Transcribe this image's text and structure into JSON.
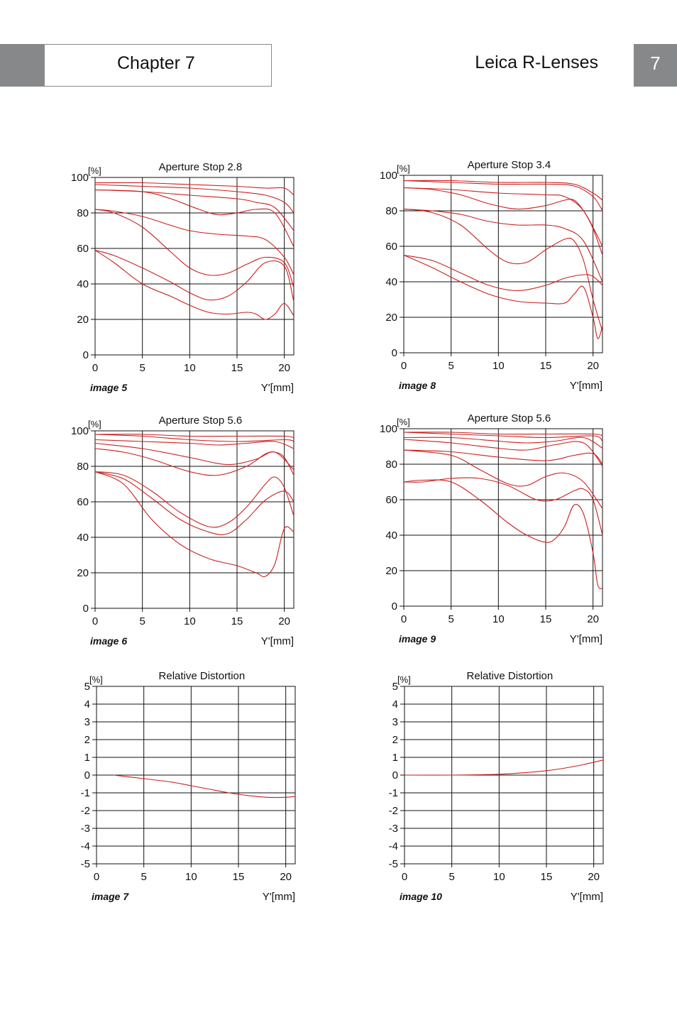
{
  "header": {
    "chapter": "Chapter 7",
    "section": "Leica R-Lenses",
    "page_number": "7"
  },
  "colors": {
    "curve": "#cc1f1f",
    "grid": "#111111",
    "header_block": "#868889"
  },
  "chart_data": [
    {
      "id": "image5",
      "type": "line",
      "title": "Aperture Stop 2.8",
      "caption": "image 5",
      "xlabel": "Y'[mm]",
      "ylabel": "[%]",
      "xlim": [
        0,
        21
      ],
      "ylim": [
        0,
        100
      ],
      "xticks": [
        0,
        5,
        10,
        15,
        20
      ],
      "yticks": [
        0,
        20,
        40,
        60,
        80,
        100
      ],
      "series": [
        {
          "x": [
            0,
            5,
            10,
            15,
            18,
            20,
            21
          ],
          "y": [
            97,
            97,
            96,
            95,
            94,
            94,
            90
          ]
        },
        {
          "x": [
            0,
            5,
            10,
            15,
            18,
            20,
            21
          ],
          "y": [
            96,
            95,
            94,
            92,
            90,
            86,
            80
          ]
        },
        {
          "x": [
            0,
            5,
            8,
            11,
            13,
            15,
            17,
            19,
            21
          ],
          "y": [
            93,
            92,
            88,
            82,
            79,
            80,
            82,
            80,
            61
          ]
        },
        {
          "x": [
            0,
            5,
            10,
            15,
            17,
            19,
            21
          ],
          "y": [
            93,
            92,
            90,
            88,
            86,
            83,
            70
          ]
        },
        {
          "x": [
            0,
            2,
            5,
            8,
            10,
            13,
            16,
            18,
            20,
            21
          ],
          "y": [
            82,
            81,
            78,
            73,
            70,
            68,
            67,
            65,
            55,
            45
          ]
        },
        {
          "x": [
            0,
            2,
            5,
            8,
            10,
            12,
            14,
            16,
            18,
            20,
            21
          ],
          "y": [
            82,
            80,
            72,
            58,
            49,
            45,
            46,
            51,
            55,
            52,
            38
          ]
        },
        {
          "x": [
            0,
            2,
            5,
            8,
            10,
            12,
            14,
            16,
            18,
            20,
            21
          ],
          "y": [
            59,
            56,
            49,
            41,
            35,
            31,
            33,
            41,
            52,
            50,
            30
          ]
        },
        {
          "x": [
            0,
            2,
            5,
            8,
            10,
            12,
            14,
            16,
            17,
            18,
            19,
            20,
            21
          ],
          "y": [
            59,
            52,
            40,
            33,
            28,
            24,
            23,
            24,
            23,
            20,
            23,
            29,
            22
          ]
        }
      ]
    },
    {
      "id": "image8",
      "type": "line",
      "title": "Aperture Stop 3.4",
      "caption": "image 8",
      "xlabel": "Y'[mm]",
      "ylabel": "[%]",
      "xlim": [
        0,
        21
      ],
      "ylim": [
        0,
        100
      ],
      "xticks": [
        0,
        5,
        10,
        15,
        20
      ],
      "yticks": [
        0,
        20,
        40,
        60,
        80,
        100
      ],
      "series": [
        {
          "x": [
            0,
            5,
            10,
            15,
            18,
            20,
            21
          ],
          "y": [
            97,
            97,
            96,
            96,
            95,
            90,
            86
          ]
        },
        {
          "x": [
            0,
            5,
            10,
            15,
            18,
            20,
            21
          ],
          "y": [
            97,
            96,
            95,
            95,
            94,
            88,
            80
          ]
        },
        {
          "x": [
            0,
            5,
            10,
            15,
            17,
            19,
            21
          ],
          "y": [
            93,
            92,
            90,
            89,
            88,
            80,
            60
          ]
        },
        {
          "x": [
            0,
            3,
            6,
            9,
            12,
            15,
            17,
            18,
            19,
            20,
            21
          ],
          "y": [
            93,
            92,
            89,
            84,
            81,
            83,
            86,
            86,
            80,
            70,
            55
          ]
        },
        {
          "x": [
            0,
            3,
            6,
            9,
            12,
            15,
            17,
            19,
            21
          ],
          "y": [
            81,
            80,
            78,
            74,
            72,
            72,
            70,
            63,
            40
          ]
        },
        {
          "x": [
            0,
            3,
            6,
            9,
            11,
            13,
            15,
            17,
            18,
            19,
            20,
            21
          ],
          "y": [
            81,
            79,
            72,
            58,
            51,
            51,
            58,
            64,
            63,
            52,
            30,
            12
          ]
        },
        {
          "x": [
            0,
            3,
            6,
            9,
            12,
            15,
            17,
            19,
            20,
            21
          ],
          "y": [
            55,
            52,
            45,
            38,
            35,
            38,
            42,
            44,
            43,
            38
          ]
        },
        {
          "x": [
            0,
            3,
            6,
            9,
            12,
            15,
            17,
            18,
            19,
            20,
            20.5,
            21
          ],
          "y": [
            55,
            48,
            40,
            33,
            29,
            28,
            28,
            33,
            37,
            20,
            8,
            15
          ]
        }
      ]
    },
    {
      "id": "image6",
      "type": "line",
      "title": "Aperture Stop 5.6",
      "caption": "image 6",
      "xlabel": "Y'[mm]",
      "ylabel": "[%]",
      "xlim": [
        0,
        21
      ],
      "ylim": [
        0,
        100
      ],
      "xticks": [
        0,
        5,
        10,
        15,
        20
      ],
      "yticks": [
        0,
        20,
        40,
        60,
        80,
        100
      ],
      "series": [
        {
          "x": [
            0,
            5,
            10,
            15,
            20,
            21
          ],
          "y": [
            98,
            98,
            97,
            97,
            97,
            96
          ]
        },
        {
          "x": [
            0,
            5,
            10,
            15,
            20,
            21
          ],
          "y": [
            98,
            97,
            95,
            94,
            95,
            94
          ]
        },
        {
          "x": [
            0,
            5,
            10,
            13,
            16,
            19,
            21
          ],
          "y": [
            95,
            94,
            93,
            92,
            93,
            94,
            90
          ]
        },
        {
          "x": [
            0,
            5,
            10,
            14,
            17,
            19,
            21
          ],
          "y": [
            93,
            90,
            85,
            81,
            84,
            88,
            78
          ]
        },
        {
          "x": [
            0,
            3,
            6,
            10,
            13,
            16,
            18,
            19,
            20,
            21
          ],
          "y": [
            90,
            88,
            84,
            77,
            75,
            80,
            87,
            88,
            85,
            75
          ]
        },
        {
          "x": [
            0,
            3,
            6,
            9,
            12,
            14,
            16,
            18,
            19,
            20,
            21
          ],
          "y": [
            77,
            75,
            66,
            54,
            46,
            48,
            57,
            70,
            74,
            68,
            52
          ]
        },
        {
          "x": [
            0,
            3,
            6,
            9,
            12,
            14,
            16,
            18,
            20,
            21
          ],
          "y": [
            77,
            73,
            62,
            50,
            43,
            42,
            50,
            61,
            66,
            60
          ]
        },
        {
          "x": [
            0,
            3,
            6,
            9,
            12,
            15,
            17,
            18,
            19,
            20,
            21
          ],
          "y": [
            77,
            70,
            50,
            36,
            28,
            24,
            20,
            18,
            25,
            45,
            43
          ]
        }
      ]
    },
    {
      "id": "image9",
      "type": "line",
      "title": "Aperture Stop 5.6",
      "caption": "image 9",
      "xlabel": "Y'[mm]",
      "ylabel": "[%]",
      "xlim": [
        0,
        21
      ],
      "ylim": [
        0,
        100
      ],
      "xticks": [
        0,
        5,
        10,
        15,
        20
      ],
      "yticks": [
        0,
        20,
        40,
        60,
        80,
        100
      ],
      "series": [
        {
          "x": [
            0,
            5,
            10,
            15,
            20,
            21
          ],
          "y": [
            98,
            98,
            97,
            97,
            97,
            96
          ]
        },
        {
          "x": [
            0,
            5,
            10,
            15,
            20,
            21
          ],
          "y": [
            98,
            97,
            96,
            95,
            96,
            93
          ]
        },
        {
          "x": [
            0,
            5,
            10,
            13,
            16,
            19,
            21
          ],
          "y": [
            95,
            95,
            93,
            92,
            93,
            95,
            89
          ]
        },
        {
          "x": [
            0,
            5,
            10,
            13,
            16,
            19,
            21
          ],
          "y": [
            94,
            92,
            89,
            88,
            91,
            92,
            79
          ]
        },
        {
          "x": [
            0,
            5,
            10,
            15,
            18,
            20,
            21
          ],
          "y": [
            88,
            87,
            84,
            82,
            85,
            86,
            80
          ]
        },
        {
          "x": [
            0,
            5,
            8,
            11,
            13,
            15,
            17,
            19,
            21
          ],
          "y": [
            88,
            85,
            77,
            69,
            68,
            73,
            75,
            70,
            55
          ]
        },
        {
          "x": [
            0,
            2,
            5,
            8,
            11,
            14,
            16,
            18,
            19,
            20,
            21
          ],
          "y": [
            70,
            70,
            72,
            72,
            68,
            60,
            60,
            65,
            66,
            60,
            40
          ]
        },
        {
          "x": [
            0,
            2,
            5,
            8,
            11,
            13,
            15,
            16,
            17,
            18,
            19,
            20,
            20.5,
            21
          ],
          "y": [
            70,
            71,
            70,
            60,
            47,
            40,
            36,
            38,
            45,
            57,
            52,
            30,
            12,
            10
          ]
        }
      ]
    },
    {
      "id": "image7",
      "type": "line",
      "title": "Relative Distortion",
      "caption": "image 7",
      "xlabel": "Y'[mm]",
      "ylabel": "[%]",
      "xlim": [
        0,
        21
      ],
      "ylim": [
        -5,
        5
      ],
      "xticks": [
        0,
        5,
        10,
        15,
        20
      ],
      "yticks": [
        -5,
        -4,
        -3,
        -2,
        -1,
        0,
        1,
        2,
        3,
        4,
        5
      ],
      "series": [
        {
          "x": [
            1.8,
            5,
            8,
            10,
            12,
            14,
            16,
            18,
            20,
            21
          ],
          "y": [
            0,
            -0.2,
            -0.4,
            -0.6,
            -0.8,
            -1.0,
            -1.15,
            -1.25,
            -1.25,
            -1.2
          ]
        }
      ]
    },
    {
      "id": "image10",
      "type": "line",
      "title": "Relative Distortion",
      "caption": "image 10",
      "xlabel": "Y'[mm]",
      "ylabel": "[%]",
      "xlim": [
        0,
        21
      ],
      "ylim": [
        -5,
        5
      ],
      "xticks": [
        0,
        5,
        10,
        15,
        20
      ],
      "yticks": [
        -5,
        -4,
        -3,
        -2,
        -1,
        0,
        1,
        2,
        3,
        4,
        5
      ],
      "series": [
        {
          "x": [
            0,
            5,
            10,
            13,
            15,
            17,
            19,
            21
          ],
          "y": [
            0,
            0,
            0.05,
            0.15,
            0.25,
            0.4,
            0.6,
            0.85
          ]
        }
      ]
    }
  ]
}
